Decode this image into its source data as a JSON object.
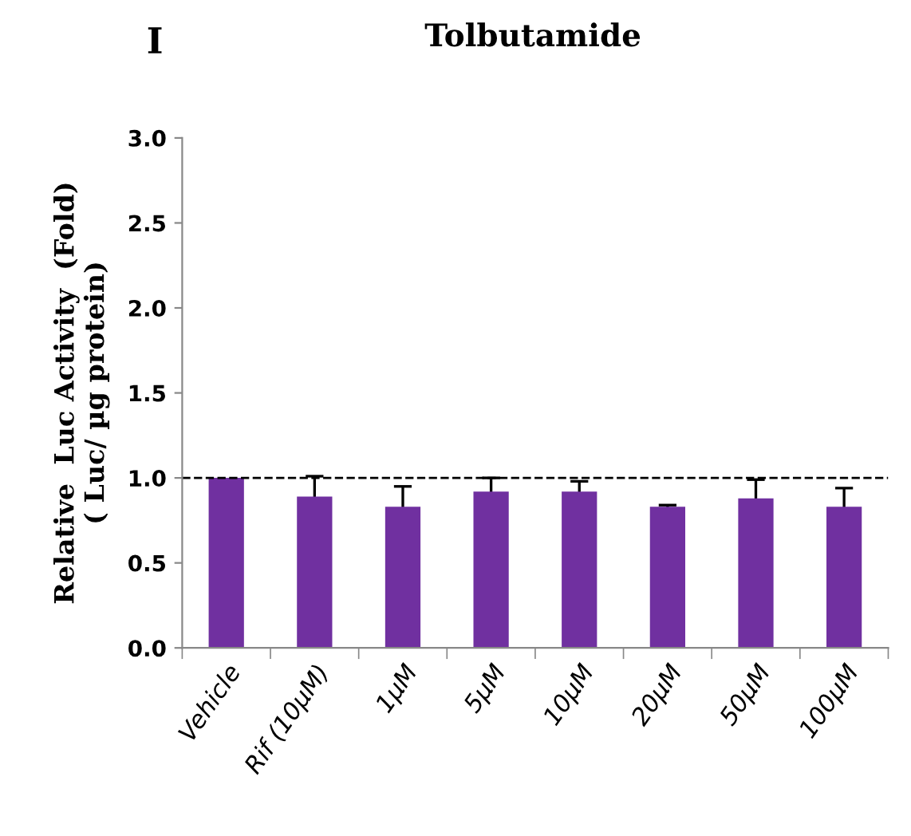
{
  "chart_data": {
    "type": "bar",
    "title": "Tolbutamide",
    "annotations": [
      "I"
    ],
    "ylabel": "Relative  Luc Activity  (Fold)\n( Luc/ µg protein)",
    "categories": [
      "Vehicle",
      "Rif (10μM)",
      "1μM",
      "5μM",
      "10μM",
      "20μM",
      "50μM",
      "100μM"
    ],
    "values": [
      1.0,
      0.89,
      0.83,
      0.92,
      0.92,
      0.83,
      0.88,
      0.83
    ],
    "errors": [
      null,
      0.12,
      0.12,
      0.08,
      0.06,
      0.01,
      0.11,
      0.11
    ],
    "color": "#7030a0",
    "ylim": [
      0,
      3.0
    ],
    "yticks": [
      {
        "value": 0,
        "label": "0.0"
      },
      {
        "value": 0.5,
        "label": "0.5"
      },
      {
        "value": 1.0,
        "label": "1.0"
      },
      {
        "value": 1.5,
        "label": "1.5"
      },
      {
        "value": 2.0,
        "label": "2.0"
      },
      {
        "value": 2.5,
        "label": "2.5"
      },
      {
        "value": 3.0,
        "label": "3.0"
      }
    ],
    "ref_lines": [
      {
        "axis": "y",
        "value": 1.0,
        "label": null,
        "color": "#000000",
        "line_style": "dashed"
      }
    ],
    "grid": false,
    "legend": false
  }
}
